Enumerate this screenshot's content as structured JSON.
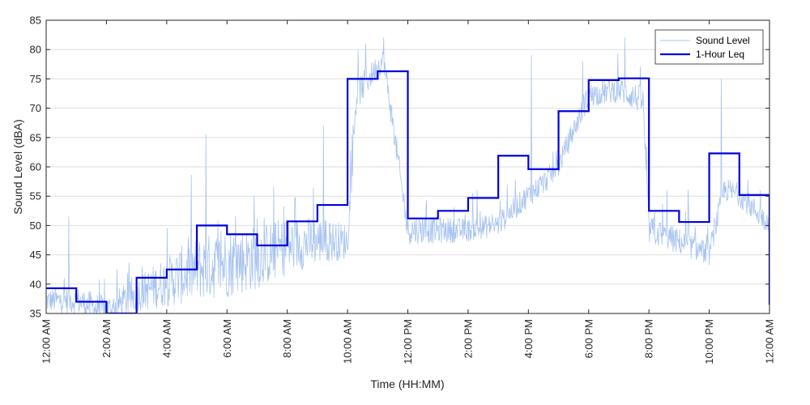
{
  "chart_data": {
    "type": "line",
    "title": "",
    "xlabel": "Time (HH:MM)",
    "ylabel": "Sound Level (dBA)",
    "xlim": [
      0,
      24
    ],
    "ylim": [
      35,
      85
    ],
    "x_unit": "hours",
    "yticks": [
      35,
      40,
      45,
      50,
      55,
      60,
      65,
      70,
      75,
      80,
      85
    ],
    "xticks": [
      0,
      2,
      4,
      6,
      8,
      10,
      12,
      14,
      16,
      18,
      20,
      22,
      24
    ],
    "xtick_labels": [
      "12:00 AM",
      "2:00 AM",
      "4:00 AM",
      "6:00 AM",
      "8:00 AM",
      "10:00 AM",
      "12:00 PM",
      "2:00 PM",
      "4:00 PM",
      "6:00 PM",
      "8:00 PM",
      "10:00 PM",
      "12:00 AM"
    ],
    "grid": true,
    "legend_position": "top-right",
    "series": [
      {
        "name": "Sound Level",
        "color": "#a8c4f0",
        "style": "thin-line",
        "baseline": [
          [
            0,
            37
          ],
          [
            1,
            37
          ],
          [
            2,
            35
          ],
          [
            3,
            38
          ],
          [
            4,
            40
          ],
          [
            5,
            42
          ],
          [
            6,
            43
          ],
          [
            7,
            44
          ],
          [
            8,
            46
          ],
          [
            9,
            47
          ],
          [
            10,
            47
          ],
          [
            10.3,
            72
          ],
          [
            11,
            77
          ],
          [
            11.2,
            78
          ],
          [
            12,
            49
          ],
          [
            13,
            49
          ],
          [
            14,
            49
          ],
          [
            15,
            50
          ],
          [
            16,
            55
          ],
          [
            16.5,
            57
          ],
          [
            17,
            60
          ],
          [
            17.5,
            66
          ],
          [
            18,
            72
          ],
          [
            19,
            73
          ],
          [
            19.8,
            71
          ],
          [
            20,
            49
          ],
          [
            21,
            47
          ],
          [
            22,
            45
          ],
          [
            22.5,
            56
          ],
          [
            23,
            55
          ],
          [
            24,
            50
          ]
        ],
        "spread": [
          [
            0,
            4
          ],
          [
            3,
            6
          ],
          [
            4.5,
            10
          ],
          [
            6,
            12
          ],
          [
            8,
            10
          ],
          [
            10,
            6
          ],
          [
            11,
            4
          ],
          [
            12,
            5
          ],
          [
            14,
            4
          ],
          [
            16,
            4
          ],
          [
            18,
            4
          ],
          [
            20,
            5
          ],
          [
            22,
            4
          ],
          [
            24,
            4
          ]
        ],
        "peaks": [
          [
            0.75,
            51.5
          ],
          [
            5.3,
            65.5
          ],
          [
            6.9,
            55
          ],
          [
            9.2,
            67
          ],
          [
            10.6,
            81
          ],
          [
            11.2,
            82
          ],
          [
            12.5,
            51
          ],
          [
            14.3,
            56
          ],
          [
            15.3,
            57
          ],
          [
            16.1,
            79
          ],
          [
            17.8,
            78
          ],
          [
            19.2,
            82
          ],
          [
            20.6,
            56
          ],
          [
            21.3,
            56
          ],
          [
            22.4,
            75
          ],
          [
            23.7,
            56
          ]
        ]
      },
      {
        "name": "1-Hour Leq",
        "color": "#0000e0",
        "style": "step",
        "values": [
          39.3,
          37.0,
          35.0,
          41.1,
          42.5,
          50.0,
          48.5,
          46.6,
          50.7,
          53.5,
          75.0,
          76.3,
          51.2,
          52.5,
          54.7,
          61.9,
          59.6,
          69.5,
          74.8,
          75.1,
          52.5,
          50.6,
          62.3,
          55.2
        ]
      }
    ]
  }
}
